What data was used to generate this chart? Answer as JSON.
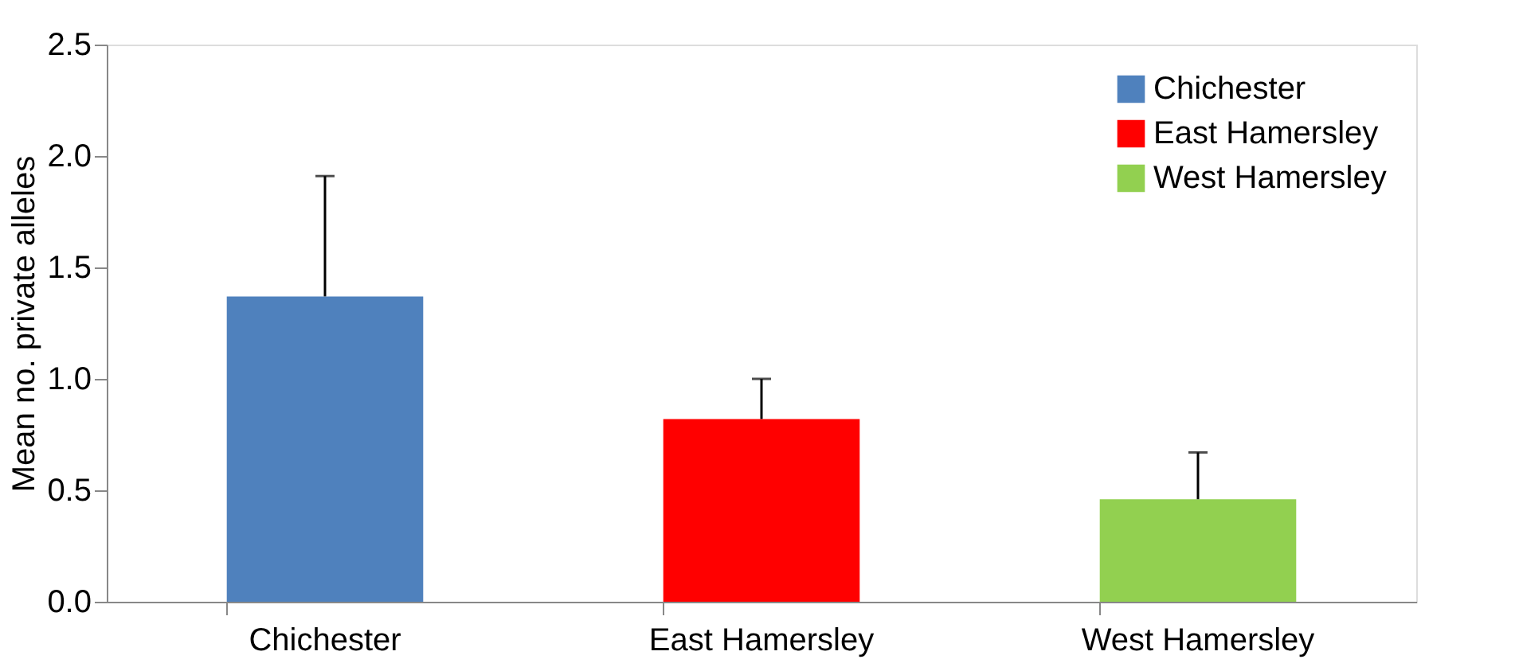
{
  "chart_data": {
    "type": "bar",
    "ylabel": "Mean no. private alleles",
    "categories": [
      "Chichester",
      "East Hamersley",
      "West Hamersley"
    ],
    "series": [
      {
        "name": "Chichester",
        "color": "#4f81bd",
        "values": [
          1.37,
          null,
          null
        ],
        "errors": [
          [
            1.37,
            1.91
          ],
          null,
          null
        ]
      },
      {
        "name": "East Hamersley",
        "color": "#ff0000",
        "values": [
          null,
          0.82,
          null
        ],
        "errors": [
          null,
          [
            0.82,
            1.0
          ],
          null
        ]
      },
      {
        "name": "West Hamersley",
        "color": "#92d050",
        "values": [
          null,
          null,
          0.46
        ],
        "errors": [
          null,
          null,
          [
            0.46,
            0.67
          ]
        ]
      }
    ],
    "ylim": [
      0,
      2.5
    ],
    "yticks": [
      {
        "value": 0,
        "label": "0.0"
      },
      {
        "value": 0.5,
        "label": "0.5"
      },
      {
        "value": 1,
        "label": "1.0"
      },
      {
        "value": 1.5,
        "label": "1.5"
      },
      {
        "value": 2,
        "label": "2.0"
      },
      {
        "value": 2.5,
        "label": "2.5"
      }
    ],
    "grid": false,
    "legend": "top right"
  }
}
